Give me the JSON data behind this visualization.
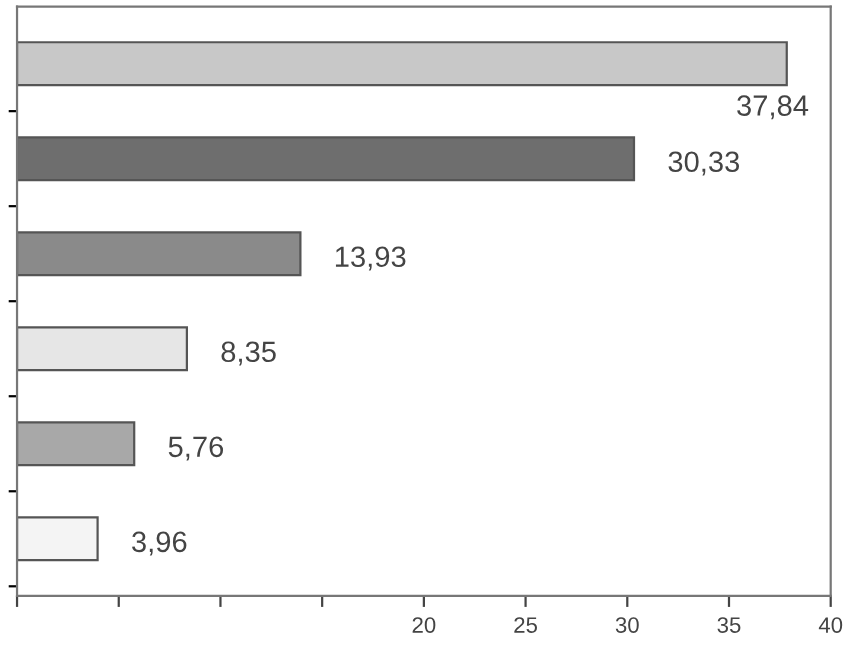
{
  "chart_data": {
    "type": "bar",
    "orientation": "horizontal",
    "categories": [
      null,
      null,
      null,
      null,
      null,
      null
    ],
    "values": [
      37.84,
      30.33,
      13.93,
      8.35,
      5.76,
      3.96
    ],
    "value_labels": [
      "37,84",
      "30,33",
      "13,93",
      "8,35",
      "5,76",
      "3,96"
    ],
    "colors": [
      "#c8c8c8",
      "#6e6e6e",
      "#8a8a8a",
      "#e6e6e6",
      "#a8a8a8",
      "#f4f4f4"
    ],
    "xlim": [
      0,
      40
    ],
    "xticks": [
      {
        "value": 0,
        "label": null
      },
      {
        "value": 5,
        "label": null
      },
      {
        "value": 10,
        "label": null
      },
      {
        "value": 15,
        "label": null
      },
      20,
      25,
      30,
      35,
      40
    ],
    "grid": false,
    "legend": false
  }
}
